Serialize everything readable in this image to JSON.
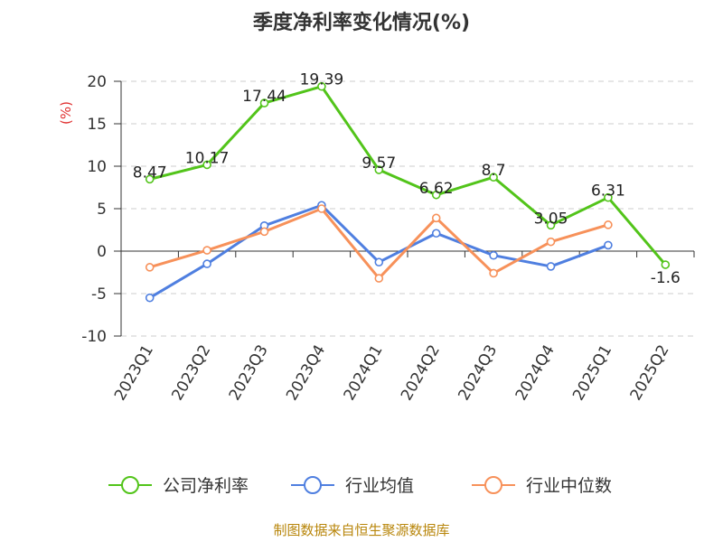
{
  "chart_data": {
    "type": "line",
    "title": "季度净利率变化情况(%)",
    "ylabel": "(%)",
    "ylim": [
      -10,
      20
    ],
    "yticks": [
      20,
      15,
      10,
      5,
      0,
      -5,
      -10
    ],
    "grid": true,
    "legend_position": "bottom",
    "categories": [
      "2023Q1",
      "2023Q2",
      "2023Q3",
      "2023Q4",
      "2024Q1",
      "2024Q2",
      "2024Q3",
      "2024Q4",
      "2025Q1",
      "2025Q2"
    ],
    "series": [
      {
        "name": "公司净利率",
        "color": "#52c41a",
        "values": [
          8.47,
          10.17,
          17.44,
          19.39,
          9.57,
          6.62,
          8.7,
          3.05,
          6.31,
          -1.6
        ],
        "labels": [
          "8.47",
          "10.17",
          "17.44",
          "19.39",
          "9.57",
          "6.62",
          "8.7",
          "3.05",
          "6.31",
          "-1.6"
        ]
      },
      {
        "name": "行业均值",
        "color": "#4f7fe0",
        "values": [
          -5.5,
          -1.5,
          3.0,
          5.4,
          -1.3,
          2.1,
          -0.5,
          -1.8,
          0.7,
          null
        ]
      },
      {
        "name": "行业中位数",
        "color": "#f7915a",
        "values": [
          -1.9,
          0.1,
          2.3,
          5.0,
          -3.2,
          3.9,
          -2.6,
          1.1,
          3.1,
          null
        ]
      }
    ]
  },
  "footer": {
    "source": "制图数据来自恒生聚源数据库"
  },
  "colors": {
    "unit_label": "#e03030",
    "grid": "#cccccc",
    "axis": "#333333"
  }
}
